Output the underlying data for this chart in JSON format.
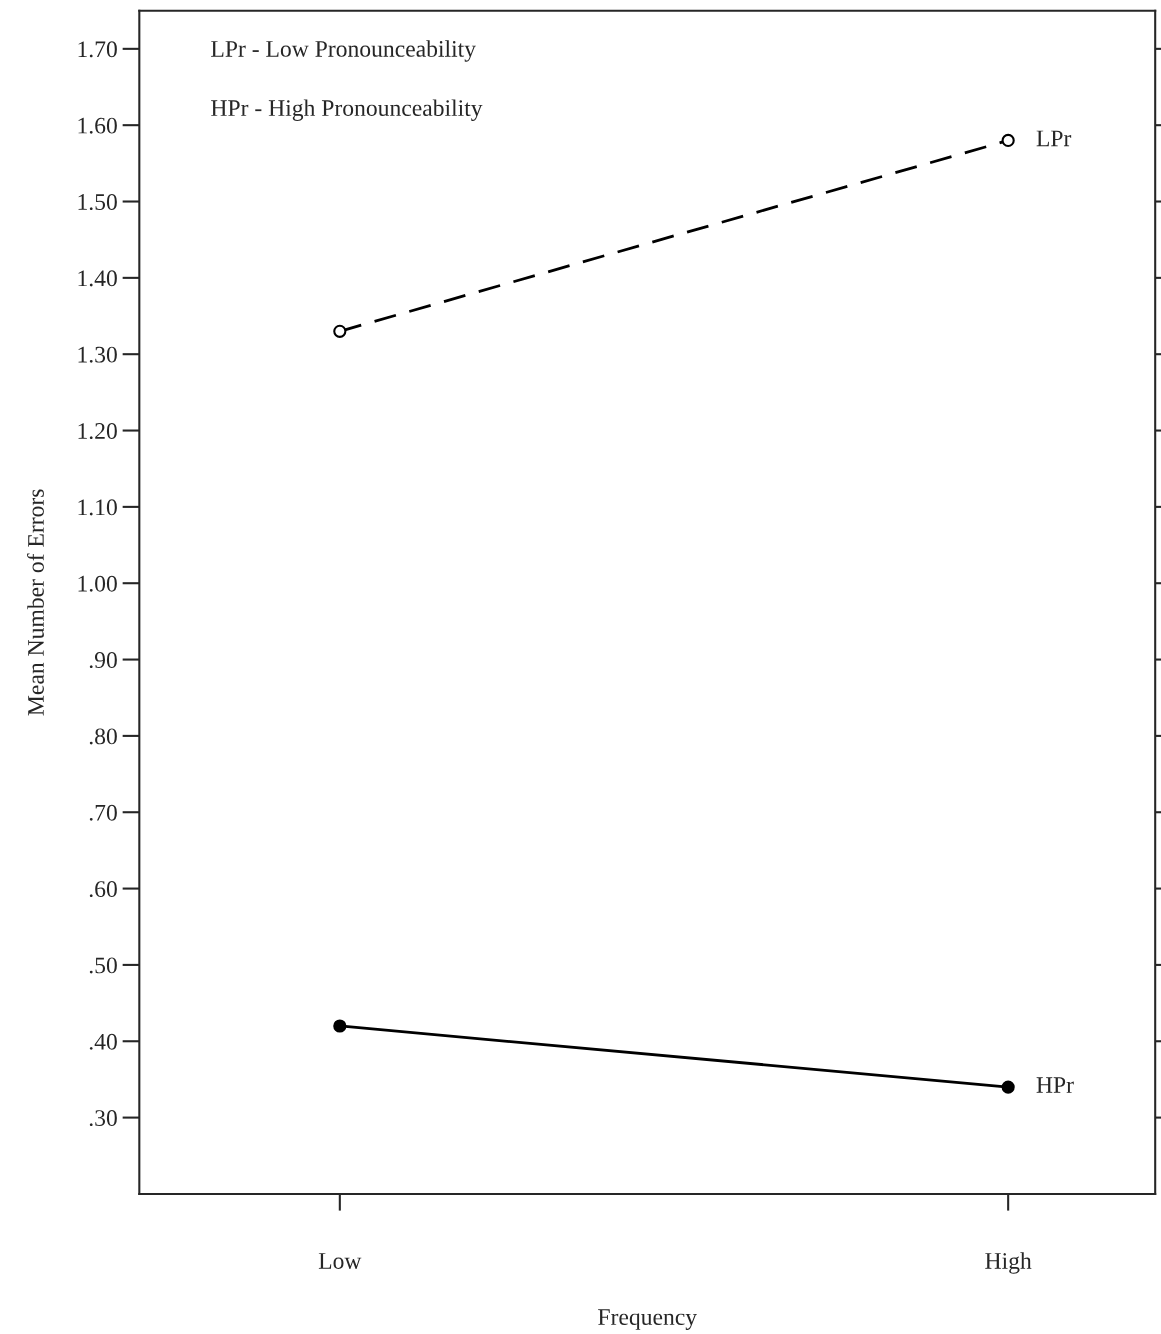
{
  "chart_data": {
    "type": "line",
    "xlabel": "Frequency",
    "ylabel": "Mean Number of Errors",
    "categories": [
      "Low",
      "High"
    ],
    "series": [
      {
        "name": "LPr",
        "color": "#000000",
        "values": [
          1.33,
          1.58
        ],
        "marker": "circle",
        "line_style": "dashed"
      },
      {
        "name": "HPr",
        "color": "#000000",
        "values": [
          0.42,
          0.34
        ],
        "marker": "circle",
        "line_style": "solid"
      }
    ],
    "ylim": [
      0.2,
      1.75
    ],
    "yticks": [
      {
        "value": 0.3,
        "label": ".30"
      },
      {
        "value": 0.4,
        "label": ".40"
      },
      {
        "value": 0.5,
        "label": ".50"
      },
      {
        "value": 0.6,
        "label": ".60"
      },
      {
        "value": 0.7,
        "label": ".70"
      },
      {
        "value": 0.8,
        "label": ".80"
      },
      {
        "value": 0.9,
        "label": ".90"
      },
      {
        "value": 1.0,
        "label": "1.00"
      },
      {
        "value": 1.1,
        "label": "1.10"
      },
      {
        "value": 1.2,
        "label": "1.20"
      },
      {
        "value": 1.3,
        "label": "1.30"
      },
      {
        "value": 1.4,
        "label": "1.40"
      },
      {
        "value": 1.5,
        "label": "1.50"
      },
      {
        "value": 1.6,
        "label": "1.60"
      },
      {
        "value": 1.7,
        "label": "1.70"
      }
    ],
    "annotations": [
      "LPr - Low Pronounceability",
      "HPr - High Pronounceability"
    ],
    "grid": false,
    "legend": false
  }
}
